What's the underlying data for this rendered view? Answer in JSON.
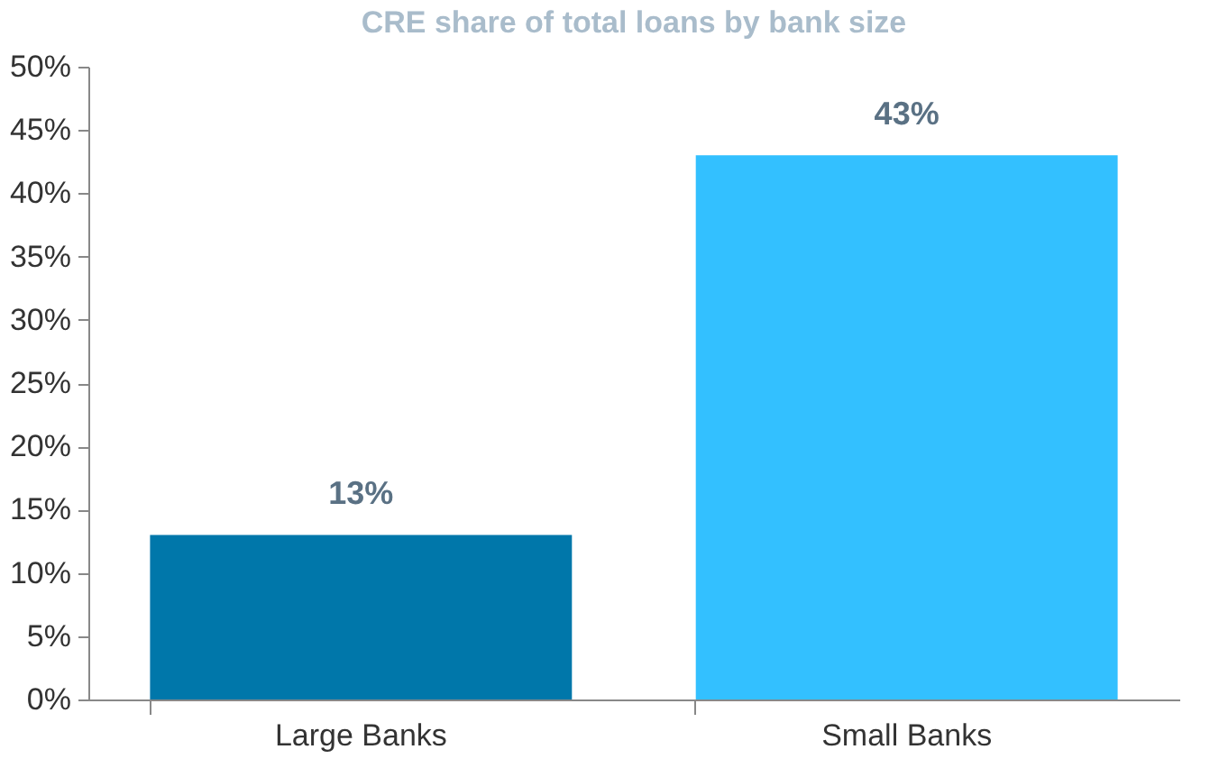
{
  "chart_data": {
    "type": "bar",
    "title": "CRE share of total loans by bank size",
    "categories": [
      "Large Banks",
      "Small Banks"
    ],
    "values": [
      13,
      43
    ],
    "colors": [
      "#0077aa",
      "#33c0ff"
    ],
    "value_labels": [
      "13%",
      "43%"
    ],
    "ylim": [
      0,
      50
    ],
    "yticks": [
      {
        "value": 0,
        "label": "0%"
      },
      {
        "value": 5,
        "label": "5%"
      },
      {
        "value": 10,
        "label": "10%"
      },
      {
        "value": 15,
        "label": "15%"
      },
      {
        "value": 20,
        "label": "20%"
      },
      {
        "value": 25,
        "label": "25%"
      },
      {
        "value": 30,
        "label": "30%"
      },
      {
        "value": 35,
        "label": "35%"
      },
      {
        "value": 40,
        "label": "40%"
      },
      {
        "value": 45,
        "label": "45%"
      },
      {
        "value": 50,
        "label": "50%"
      }
    ],
    "grid": false
  }
}
